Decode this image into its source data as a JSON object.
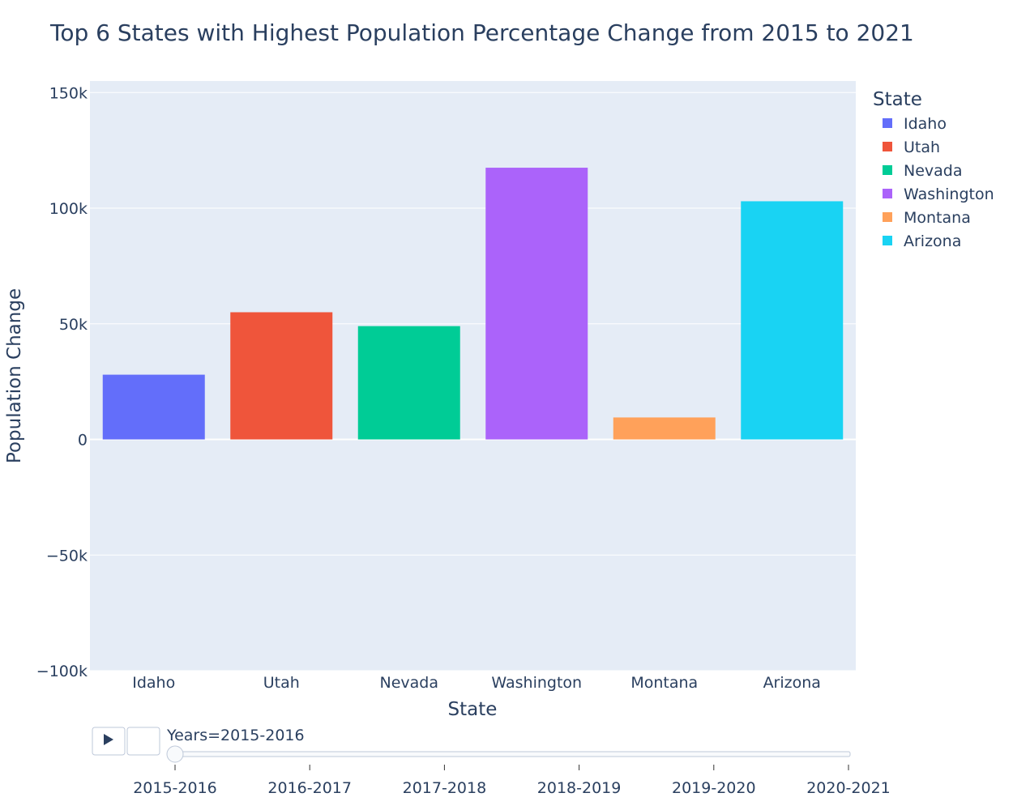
{
  "chart_data": {
    "type": "bar",
    "title": "Top 6 States with Highest Population Percentage Change from 2015 to 2021",
    "xlabel": "State",
    "ylabel": "Population Change",
    "categories": [
      "Idaho",
      "Utah",
      "Nevada",
      "Washington",
      "Montana",
      "Arizona"
    ],
    "values": [
      28000,
      55000,
      49000,
      117500,
      9500,
      103000
    ],
    "colors": [
      "#636efa",
      "#ef553b",
      "#00cc96",
      "#ab63fa",
      "#ffa15a",
      "#19d3f3"
    ],
    "ylim": [
      -100000,
      155000
    ],
    "yticks": [
      -100000,
      -50000,
      0,
      50000,
      100000,
      150000
    ],
    "ytick_labels": [
      "−100k",
      "−50k",
      "0",
      "50k",
      "100k",
      "150k"
    ],
    "grid": true,
    "legend": {
      "title": "State",
      "placement": "right"
    },
    "plot_bgcolor": "#e5ecf6"
  },
  "animation": {
    "current_label": "Years=2015-2016",
    "steps": [
      "2015-2016",
      "2016-2017",
      "2017-2018",
      "2018-2019",
      "2019-2020",
      "2020-2021"
    ],
    "active_index": 0,
    "play_icon": "play-icon",
    "stop_icon": "stop-icon"
  }
}
